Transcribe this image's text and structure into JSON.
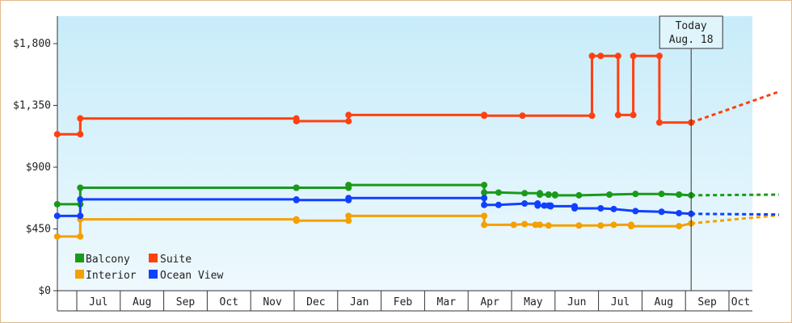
{
  "chart_data": {
    "type": "line",
    "title": "",
    "xlabel": "",
    "ylabel": "",
    "ylim": [
      0,
      2000
    ],
    "y_ticks": [
      {
        "value": 0,
        "label": "$0"
      },
      {
        "value": 450,
        "label": "$450"
      },
      {
        "value": 900,
        "label": "$900"
      },
      {
        "value": 1350,
        "label": "$1,350"
      },
      {
        "value": 1800,
        "label": "$1,800"
      }
    ],
    "x_months": [
      "Jul",
      "Aug",
      "Sep",
      "Oct",
      "Nov",
      "Dec",
      "Jan",
      "Feb",
      "Mar",
      "Apr",
      "May",
      "Jun",
      "Jul",
      "Aug",
      "Sep",
      "Oct"
    ],
    "x_unit": "months since start of June (year 1)",
    "xlim": [
      0,
      16.6
    ],
    "today": {
      "line1": "Today",
      "line2": "Aug. 18",
      "x": 14.58
    },
    "legend": {
      "placement": "bottom-left"
    },
    "colors": {
      "Balcony": "#1a9a1a",
      "Suite": "#ff4010",
      "Interior": "#f4a000",
      "Ocean View": "#1040ff"
    },
    "series": [
      {
        "name": "Balcony",
        "points": [
          [
            0,
            630
          ],
          [
            0.53,
            630
          ],
          [
            0.53,
            750
          ],
          [
            5.5,
            750
          ],
          [
            5.5,
            750
          ],
          [
            6.7,
            750
          ],
          [
            6.7,
            770
          ],
          [
            9.82,
            770
          ],
          [
            9.82,
            715
          ],
          [
            10.15,
            715
          ],
          [
            10.75,
            710
          ],
          [
            11.1,
            710
          ],
          [
            11.1,
            700
          ],
          [
            11.3,
            700
          ],
          [
            11.3,
            700
          ],
          [
            11.45,
            700
          ],
          [
            11.45,
            695
          ],
          [
            12,
            695
          ],
          [
            12.7,
            700
          ],
          [
            13.3,
            705
          ],
          [
            13.9,
            705
          ],
          [
            14.3,
            700
          ],
          [
            14.58,
            695
          ]
        ],
        "forecast": [
          [
            14.58,
            695
          ],
          [
            16.6,
            700
          ]
        ]
      },
      {
        "name": "Suite",
        "points": [
          [
            0,
            1140
          ],
          [
            0.53,
            1140
          ],
          [
            0.53,
            1255
          ],
          [
            5.5,
            1255
          ],
          [
            5.5,
            1235
          ],
          [
            6.7,
            1235
          ],
          [
            6.7,
            1280
          ],
          [
            9.82,
            1280
          ],
          [
            9.82,
            1275
          ],
          [
            10.7,
            1275
          ],
          [
            12.3,
            1275
          ],
          [
            12.3,
            1710
          ],
          [
            12.5,
            1710
          ],
          [
            12.9,
            1710
          ],
          [
            12.9,
            1280
          ],
          [
            13.25,
            1280
          ],
          [
            13.25,
            1710
          ],
          [
            13.85,
            1710
          ],
          [
            13.85,
            1225
          ],
          [
            14.58,
            1225
          ]
        ],
        "forecast": [
          [
            14.58,
            1225
          ],
          [
            16.6,
            1450
          ]
        ]
      },
      {
        "name": "Interior",
        "points": [
          [
            0,
            395
          ],
          [
            0.53,
            395
          ],
          [
            0.53,
            520
          ],
          [
            5.5,
            520
          ],
          [
            5.5,
            510
          ],
          [
            6.7,
            510
          ],
          [
            6.7,
            545
          ],
          [
            9.82,
            545
          ],
          [
            9.82,
            480
          ],
          [
            10.5,
            480
          ],
          [
            10.75,
            485
          ],
          [
            11,
            480
          ],
          [
            11.1,
            480
          ],
          [
            11.3,
            475
          ],
          [
            12,
            475
          ],
          [
            12.5,
            475
          ],
          [
            12.8,
            480
          ],
          [
            13.2,
            480
          ],
          [
            13.2,
            470
          ],
          [
            14.3,
            470
          ],
          [
            14.58,
            490
          ]
        ],
        "forecast": [
          [
            14.58,
            490
          ],
          [
            16.6,
            550
          ]
        ]
      },
      {
        "name": "Ocean View",
        "points": [
          [
            0,
            545
          ],
          [
            0.53,
            545
          ],
          [
            0.53,
            665
          ],
          [
            5.5,
            665
          ],
          [
            5.5,
            660
          ],
          [
            6.7,
            660
          ],
          [
            6.7,
            675
          ],
          [
            9.82,
            675
          ],
          [
            9.82,
            625
          ],
          [
            10.15,
            625
          ],
          [
            10.75,
            635
          ],
          [
            11.05,
            635
          ],
          [
            11.05,
            620
          ],
          [
            11.2,
            620
          ],
          [
            11.3,
            620
          ],
          [
            11.35,
            620
          ],
          [
            11.35,
            615
          ],
          [
            11.9,
            615
          ],
          [
            11.9,
            600
          ],
          [
            12.5,
            600
          ],
          [
            12.8,
            595
          ],
          [
            13.3,
            580
          ],
          [
            13.9,
            575
          ],
          [
            14.3,
            565
          ],
          [
            14.58,
            560
          ]
        ],
        "forecast": [
          [
            14.58,
            560
          ],
          [
            16.6,
            555
          ]
        ]
      }
    ]
  }
}
